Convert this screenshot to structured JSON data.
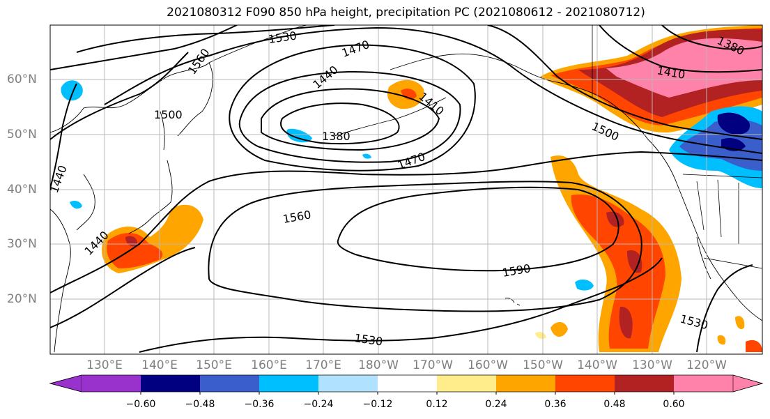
{
  "title": "2021080312 F090 850 hPa height, precipitation PC (2021080612 - 2021080712)",
  "map": {
    "lat_labels": [
      "60°N",
      "50°N",
      "40°N",
      "30°N",
      "20°N"
    ],
    "lon_labels": [
      "130°E",
      "140°E",
      "150°E",
      "160°E",
      "170°E",
      "180°W",
      "170°W",
      "160°W",
      "150°W",
      "140°W",
      "130°W",
      "120°W"
    ],
    "contour_labels": [
      "1530",
      "1470",
      "1560",
      "1440",
      "1410",
      "1500",
      "1380",
      "1470",
      "1440",
      "1560",
      "1440",
      "1590",
      "1530",
      "1530",
      "1380",
      "1410",
      "1500"
    ]
  },
  "colorbar": {
    "ticks": [
      "−0.60",
      "−0.48",
      "−0.36",
      "−0.24",
      "−0.12",
      "0.12",
      "0.24",
      "0.36",
      "0.48",
      "0.60"
    ],
    "colors": [
      "#9932cc",
      "#000080",
      "#3a5fcd",
      "#00bfff",
      "#b0e2ff",
      "#ffffff",
      "#ffec8b",
      "#ffa500",
      "#ff4500",
      "#b22222",
      "#ff82ab"
    ]
  }
}
